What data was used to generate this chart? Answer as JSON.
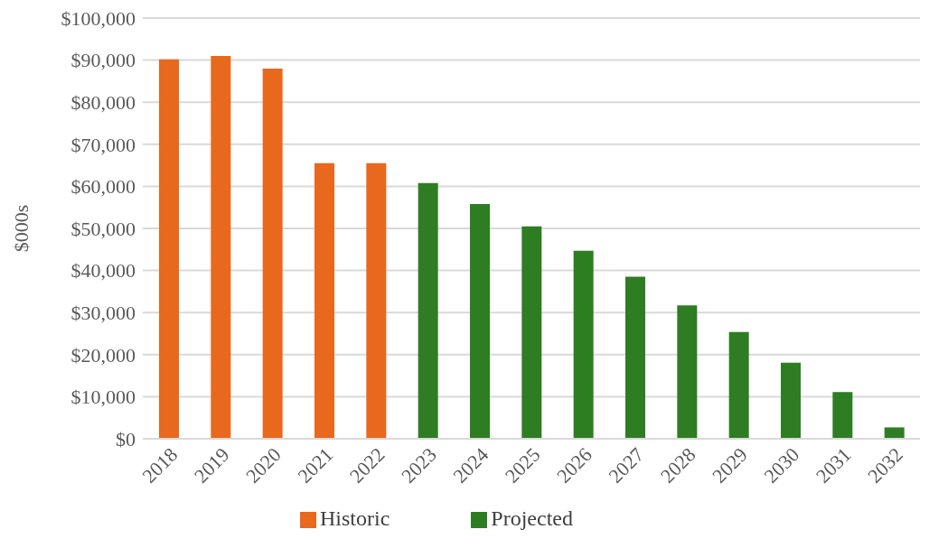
{
  "chart_data": {
    "type": "bar",
    "ylabel": "$000s",
    "stacked": true,
    "categories": [
      "2018",
      "2019",
      "2020",
      "2021",
      "2022",
      "2023",
      "2024",
      "2025",
      "2026",
      "2027",
      "2028",
      "2029",
      "2030",
      "2031",
      "2032"
    ],
    "series": [
      {
        "name": "Projected",
        "color": "#2e7d23",
        "values": [
          null,
          null,
          null,
          null,
          null,
          60800,
          55800,
          50500,
          44700,
          38500,
          31700,
          25400,
          18100,
          11100,
          2700
        ]
      },
      {
        "name": "Historic",
        "color": "#e8681e",
        "values": [
          90200,
          91000,
          88000,
          65500,
          65500,
          null,
          null,
          null,
          null,
          null,
          null,
          null,
          null,
          null,
          null
        ]
      }
    ],
    "ylim": [
      0,
      100000
    ],
    "yticks": [
      {
        "value": 0,
        "label": "$0"
      },
      {
        "value": 10000,
        "label": "$10,000"
      },
      {
        "value": 20000,
        "label": "$20,000"
      },
      {
        "value": 30000,
        "label": "$30,000"
      },
      {
        "value": 40000,
        "label": "$40,000"
      },
      {
        "value": 50000,
        "label": "$50,000"
      },
      {
        "value": 60000,
        "label": "$60,000"
      },
      {
        "value": 70000,
        "label": "$70,000"
      },
      {
        "value": 80000,
        "label": "$80,000"
      },
      {
        "value": 90000,
        "label": "$90,000"
      },
      {
        "value": 100000,
        "label": "$100,000"
      }
    ],
    "grid": "y",
    "legend": "bottom"
  }
}
